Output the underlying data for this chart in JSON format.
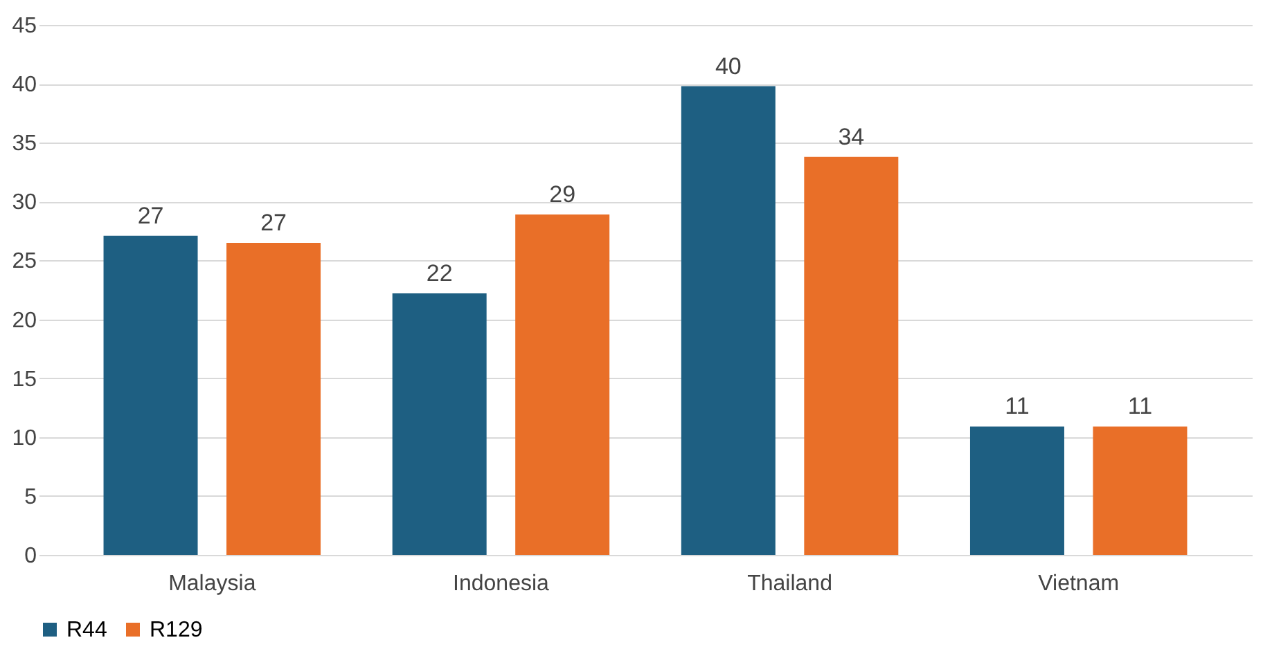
{
  "chart_data": {
    "type": "bar",
    "categories": [
      "Malaysia",
      "Indonesia",
      "Thailand",
      "Vietnam"
    ],
    "series": [
      {
        "name": "R44",
        "color": "#1e5f82",
        "values": [
          27.1,
          22.2,
          39.8,
          10.9
        ],
        "value_labels": [
          "27",
          "22",
          "40",
          "11"
        ]
      },
      {
        "name": "R129",
        "color": "#e96f28",
        "values": [
          26.5,
          28.9,
          33.8,
          10.9
        ],
        "value_labels": [
          "27",
          "29",
          "34",
          "11"
        ]
      }
    ],
    "ylim": [
      0,
      45
    ],
    "yticks": [
      0,
      5,
      10,
      15,
      20,
      25,
      30,
      35,
      40,
      45
    ],
    "grid": "y",
    "legend": "bottom"
  }
}
